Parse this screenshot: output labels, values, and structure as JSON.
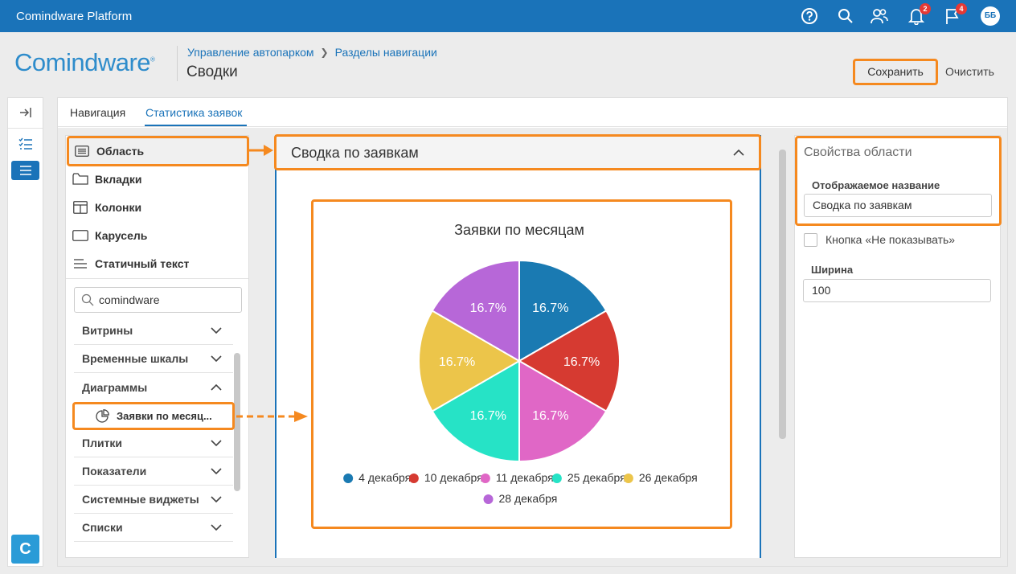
{
  "topbar": {
    "title": "Comindware Platform",
    "icons": [
      "help-icon",
      "search-icon",
      "users-icon",
      "bell-icon",
      "flag-icon"
    ],
    "notifications_count": "2",
    "flags_count": "4",
    "avatar_initials": "ББ"
  },
  "header": {
    "logo": "Comindware",
    "breadcrumb": [
      "Управление автопарком",
      "Разделы навигации"
    ],
    "page_title": "Сводки",
    "save_label": "Сохранить",
    "clear_label": "Очистить"
  },
  "rail": {
    "icons": [
      "collapse-icon",
      "checklist-icon",
      "list-icon"
    ],
    "logo_letter": "C"
  },
  "tabs": [
    "Навигация",
    "Статистика заявок"
  ],
  "left_panel": {
    "items": [
      {
        "label": "Область",
        "icon": "list-box-icon"
      },
      {
        "label": "Вкладки",
        "icon": "folder-icon"
      },
      {
        "label": "Колонки",
        "icon": "columns-icon"
      },
      {
        "label": "Карусель",
        "icon": "carousel-icon"
      },
      {
        "label": "Статичный текст",
        "icon": "text-icon"
      }
    ],
    "search_value": "comindware",
    "categories": [
      {
        "label": "Витрины",
        "expanded": false
      },
      {
        "label": "Временные шкалы",
        "expanded": false
      },
      {
        "label": "Диаграммы",
        "expanded": true
      },
      {
        "label": "Плитки",
        "expanded": false
      },
      {
        "label": "Показатели",
        "expanded": false
      },
      {
        "label": "Системные виджеты",
        "expanded": false
      },
      {
        "label": "Списки",
        "expanded": false
      }
    ],
    "chart_item": "Заявки по месяц..."
  },
  "center": {
    "section_title": "Сводка по заявкам"
  },
  "chart_data": {
    "type": "pie",
    "title": "Заявки по месяцам",
    "categories": [
      "4 декабря",
      "10 декабря",
      "11 декабря",
      "25 декабря",
      "26 декабря",
      "28 декабря"
    ],
    "values": [
      16.7,
      16.7,
      16.7,
      16.7,
      16.7,
      16.7
    ],
    "labels": [
      "16.7%",
      "16.7%",
      "16.7%",
      "16.7%",
      "16.7%",
      "16.7%"
    ],
    "colors": [
      "#1a7ab2",
      "#d63a31",
      "#e067c6",
      "#26e3c6",
      "#ecc54a",
      "#b767d8"
    ],
    "legend": "bottom"
  },
  "right_panel": {
    "title": "Свойства области",
    "display_name_label": "Отображаемое название",
    "display_name_value": "Сводка по заявкам",
    "hide_button_label": "Кнопка «Не показывать»",
    "width_label": "Ширина",
    "width_value": "100"
  }
}
